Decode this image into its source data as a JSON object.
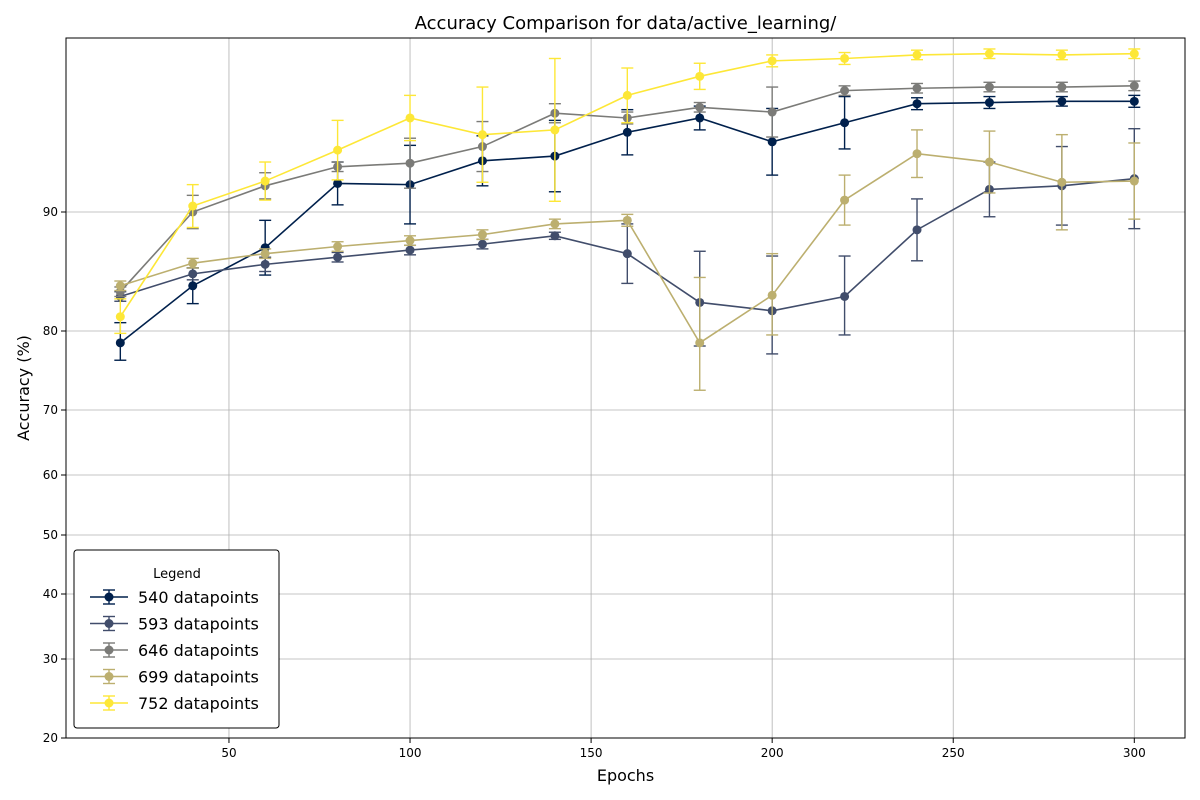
{
  "chart_data": {
    "type": "line",
    "title": "Accuracy Comparison for data/active_learning/",
    "xlabel": "Epochs",
    "ylabel": "Accuracy (%)",
    "xlim": [
      5,
      314
    ],
    "ylim": [
      20,
      100
    ],
    "y_scale": "non-linear (expanded near top)",
    "x_ticks": [
      50,
      100,
      150,
      200,
      250,
      300
    ],
    "y_ticks": [
      20,
      30,
      40,
      50,
      60,
      70,
      80,
      90
    ],
    "grid": true,
    "legend": {
      "title": "Legend",
      "position": "lower-left"
    },
    "x": [
      20,
      40,
      60,
      80,
      100,
      120,
      140,
      160,
      180,
      200,
      220,
      240,
      260,
      280,
      300
    ],
    "series": [
      {
        "name": "540 datapoints",
        "color": "#00204c",
        "values": [
          78.5,
          83.8,
          87.0,
          92.4,
          92.3,
          94.3,
          94.7,
          96.7,
          97.9,
          95.9,
          97.5,
          99.1,
          99.2,
          99.3,
          99.3
        ],
        "errors": [
          2.2,
          1.5,
          2.3,
          1.8,
          3.3,
          2.1,
          3.0,
          1.9,
          1.0,
          2.8,
          2.2,
          0.5,
          0.5,
          0.4,
          0.5
        ]
      },
      {
        "name": "593 datapoints",
        "color": "#414d6b",
        "values": [
          82.9,
          84.8,
          85.6,
          86.2,
          86.8,
          87.3,
          88.0,
          86.5,
          82.4,
          81.7,
          82.9,
          88.5,
          91.9,
          92.2,
          92.8
        ],
        "errors": [
          0.4,
          0.5,
          0.6,
          0.4,
          0.4,
          0.4,
          0.3,
          2.5,
          4.3,
          4.6,
          3.4,
          2.6,
          2.3,
          3.3,
          4.2
        ]
      },
      {
        "name": "646 datapoints",
        "color": "#7b7b78",
        "values": [
          83.3,
          90.0,
          92.2,
          93.8,
          94.1,
          95.5,
          98.3,
          97.9,
          98.8,
          98.4,
          100.2,
          100.4,
          100.5,
          100.5,
          100.6
        ],
        "errors": [
          0.4,
          1.4,
          1.1,
          0.4,
          2.1,
          2.1,
          0.8,
          0.5,
          0.4,
          2.1,
          0.4,
          0.4,
          0.4,
          0.4,
          0.4
        ]
      },
      {
        "name": "699 datapoints",
        "color": "#bcaf6f",
        "values": [
          83.8,
          85.7,
          86.5,
          87.1,
          87.6,
          88.1,
          89.0,
          89.3,
          78.5,
          83.0,
          91.0,
          94.9,
          94.2,
          92.5,
          92.6
        ],
        "errors": [
          0.4,
          0.4,
          0.4,
          0.4,
          0.4,
          0.4,
          0.4,
          0.5,
          6.0,
          3.5,
          2.1,
          2.0,
          2.6,
          4.0,
          3.2
        ]
      },
      {
        "name": "752 datapoints",
        "color": "#fde737",
        "values": [
          81.2,
          90.5,
          92.6,
          95.2,
          97.9,
          96.5,
          96.9,
          99.8,
          101.4,
          102.7,
          102.9,
          103.2,
          103.3,
          103.2,
          103.3
        ],
        "errors": [
          1.5,
          1.8,
          1.6,
          2.5,
          1.9,
          4.0,
          6.0,
          2.3,
          1.1,
          0.5,
          0.5,
          0.4,
          0.4,
          0.4,
          0.4
        ]
      }
    ]
  }
}
